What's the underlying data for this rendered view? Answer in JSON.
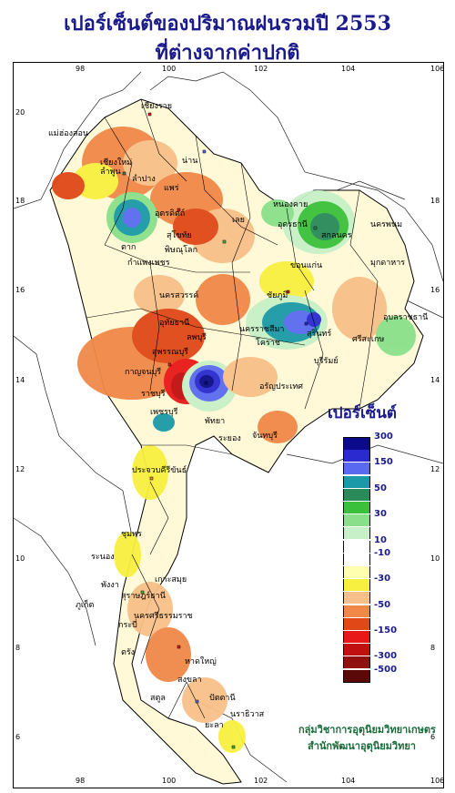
{
  "title": {
    "line1": "เปอร์เซ็นต์ของปริมาณฝนรวมปี  2553",
    "line2": "ที่ต่างจากค่าปกติ"
  },
  "axes": {
    "x_ticks": [
      "98",
      "100",
      "102",
      "104",
      "106"
    ],
    "y_ticks": [
      "20",
      "18",
      "16",
      "14",
      "12",
      "10",
      "8",
      "6"
    ]
  },
  "places": [
    "แม่ฮ่องสอน",
    "เชียงราย",
    "เชียงใหม่",
    "ลำพูน",
    "น่าน",
    "ลำปาง",
    "แพร่",
    "อุตรดิตถ์",
    "ตาก",
    "กำแพงเพชร",
    "สุโขทัย",
    "พิษณุโลก",
    "เลย",
    "หนองคาย",
    "อุดรธานี",
    "สกลนคร",
    "นครพนม",
    "มุกดาหาร",
    "ขอนแก่น",
    "นครสวรรค์",
    "ชัยภูมิ",
    "อุบลราชธานี",
    "นครราชสีมา",
    "สุรินทร์",
    "โคราช",
    "อุทัยธานี",
    "ลพบุรี",
    "สุพรรณบุรี",
    "กาญจนบุรี",
    "ราชบุรี",
    "เพชรบุรี",
    "พัทยา",
    "ระยอง",
    "จันทบุรี",
    "อรัญประเทศ",
    "ประจวบคีรีขันธ์",
    "ชุมพร",
    "ระนอง",
    "เกาะสมุย",
    "สุราษฎร์ธานี",
    "ภูเก็ต",
    "นครศรีธรรมราช",
    "กระบี่",
    "ตรัง",
    "สงขลา",
    "สตูล",
    "ปัตตานี",
    "นราธิวาส",
    "ยะลา",
    "พังงา",
    "หาดใหญ่",
    "บุรีรัมย์",
    "ศรีสะเกษ"
  ],
  "legend": {
    "title": "เปอร์เซ็นต์",
    "items": [
      {
        "label": "300",
        "color": "#0a0a8a"
      },
      {
        "label": "",
        "color": "#2a2ad0"
      },
      {
        "label": "150",
        "color": "#5a6af0"
      },
      {
        "label": "",
        "color": "#1a9aa8"
      },
      {
        "label": "50",
        "color": "#2a8a5a"
      },
      {
        "label": "",
        "color": "#3ac03a"
      },
      {
        "label": "30",
        "color": "#8ae08a"
      },
      {
        "label": "",
        "color": "#c8f0c8"
      },
      {
        "label": "10",
        "color": "#ffffff"
      },
      {
        "label": "-10",
        "color": "#ffffff"
      },
      {
        "label": "",
        "color": "#ffffb0"
      },
      {
        "label": "-30",
        "color": "#f8f040"
      },
      {
        "label": "",
        "color": "#f8c088"
      },
      {
        "label": "-50",
        "color": "#f08848"
      },
      {
        "label": "",
        "color": "#e04818"
      },
      {
        "label": "-150",
        "color": "#e81818"
      },
      {
        "label": "",
        "color": "#c01010"
      },
      {
        "label": "-300",
        "color": "#901010"
      },
      {
        "label": "-500",
        "color": "#5a0808"
      }
    ]
  },
  "credits": {
    "line1": "กลุ่มวิชาการอุตุนิยมวิทยาเกษตร",
    "line2": "สำนักพัฒนาอุตุนิยมวิทยา"
  }
}
